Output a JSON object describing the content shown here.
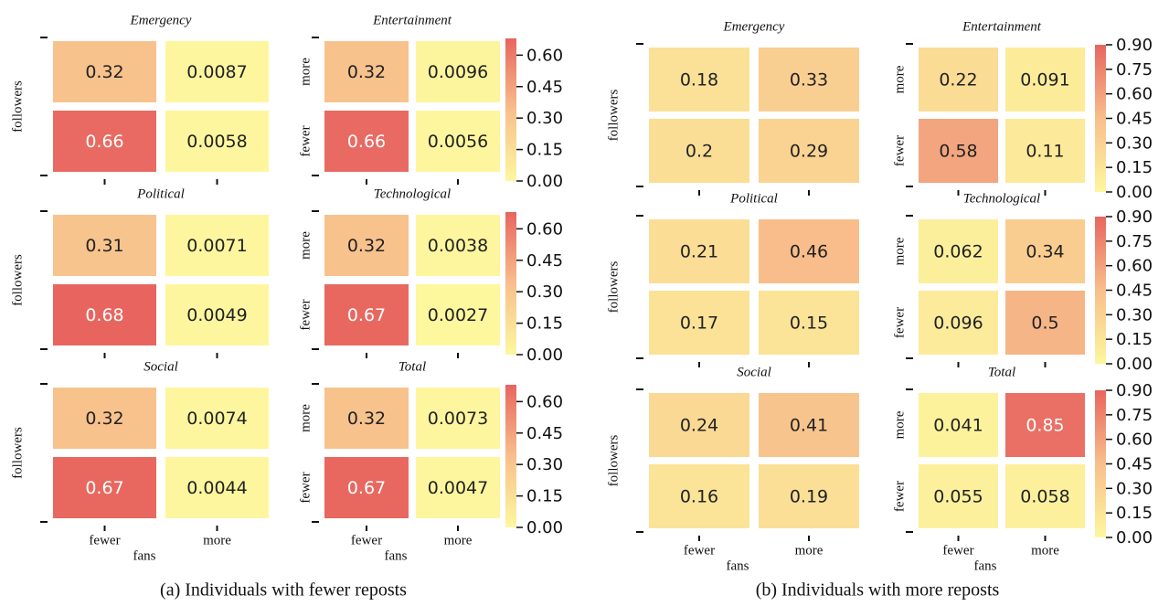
{
  "chart_data": [
    {
      "type": "heatmap",
      "caption": "(a)  Individuals with fewer reposts",
      "xlabel": "fans",
      "ylabel": "followers",
      "x_categories": [
        "fewer",
        "more"
      ],
      "y_categories": [
        "more",
        "fewer"
      ],
      "colormap": [
        "#fdf79e",
        "#f8bf8c",
        "#e8655f"
      ],
      "clim": [
        0,
        0.68
      ],
      "cticks": [
        {
          "value": 0,
          "label": "0.00"
        },
        {
          "value": 0.15,
          "label": "0.15"
        },
        {
          "value": 0.3,
          "label": "0.30"
        },
        {
          "value": 0.45,
          "label": "0.45"
        },
        {
          "value": 0.6,
          "label": "0.60"
        }
      ],
      "subplots": [
        {
          "title": "Emergency",
          "values": [
            [
              0.32,
              0.0087
            ],
            [
              0.66,
              0.0058
            ]
          ]
        },
        {
          "title": "Entertainment",
          "values": [
            [
              0.32,
              0.0096
            ],
            [
              0.66,
              0.0056
            ]
          ]
        },
        {
          "title": "Political",
          "values": [
            [
              0.31,
              0.0071
            ],
            [
              0.68,
              0.0049
            ]
          ]
        },
        {
          "title": "Technological",
          "values": [
            [
              0.32,
              0.0038
            ],
            [
              0.67,
              0.0027
            ]
          ]
        },
        {
          "title": "Social",
          "values": [
            [
              0.32,
              0.0074
            ],
            [
              0.67,
              0.0044
            ]
          ]
        },
        {
          "title": "Total",
          "values": [
            [
              0.32,
              0.0073
            ],
            [
              0.67,
              0.0047
            ]
          ]
        }
      ]
    },
    {
      "type": "heatmap",
      "caption": "(b)  Individuals with more reposts",
      "xlabel": "fans",
      "ylabel": "followers",
      "x_categories": [
        "fewer",
        "more"
      ],
      "y_categories": [
        "more",
        "fewer"
      ],
      "colormap": [
        "#fdf79e",
        "#f8bf8c",
        "#e8655f"
      ],
      "clim": [
        0,
        0.9
      ],
      "cticks": [
        {
          "value": 0,
          "label": "0.00"
        },
        {
          "value": 0.15,
          "label": "0.15"
        },
        {
          "value": 0.3,
          "label": "0.30"
        },
        {
          "value": 0.45,
          "label": "0.45"
        },
        {
          "value": 0.6,
          "label": "0.60"
        },
        {
          "value": 0.75,
          "label": "0.75"
        },
        {
          "value": 0.9,
          "label": "0.90"
        }
      ],
      "subplots": [
        {
          "title": "Emergency",
          "values": [
            [
              0.18,
              0.33
            ],
            [
              0.2,
              0.29
            ]
          ]
        },
        {
          "title": "Entertainment",
          "values": [
            [
              0.22,
              0.091
            ],
            [
              0.58,
              0.11
            ]
          ]
        },
        {
          "title": "Political",
          "values": [
            [
              0.21,
              0.46
            ],
            [
              0.17,
              0.15
            ]
          ]
        },
        {
          "title": "Technological",
          "values": [
            [
              0.062,
              0.34
            ],
            [
              0.096,
              0.5
            ]
          ]
        },
        {
          "title": "Social",
          "values": [
            [
              0.24,
              0.41
            ],
            [
              0.16,
              0.19
            ]
          ]
        },
        {
          "title": "Total",
          "values": [
            [
              0.041,
              0.85
            ],
            [
              0.055,
              0.058
            ]
          ]
        }
      ]
    }
  ]
}
